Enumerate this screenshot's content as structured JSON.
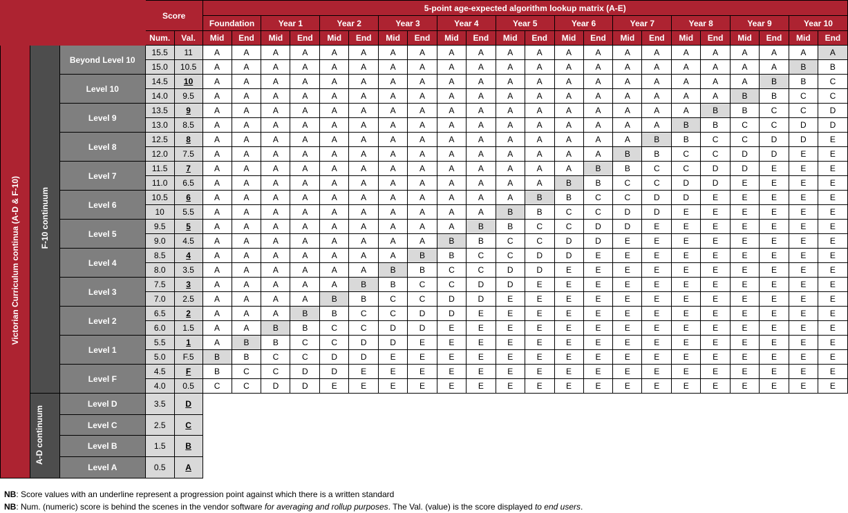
{
  "header": {
    "score_label": "Score",
    "num_label": "Num.",
    "val_label": "Val.",
    "matrix_title": "5-point age-expected algorithm lookup matrix (A-E)",
    "mid_label": "Mid",
    "end_label": "End"
  },
  "years": [
    "Foundation",
    "Year 1",
    "Year 2",
    "Year 3",
    "Year 4",
    "Year 5",
    "Year 6",
    "Year 7",
    "Year 8",
    "Year 9",
    "Year 10"
  ],
  "side": {
    "victorian": "Victorian Curriculum continua (A-D & F-10)",
    "f10": "F-10 continuum",
    "ad": "A-D continuum"
  },
  "levels": [
    {
      "name": "Beyond Level 10",
      "rows": [
        {
          "num": "15.5",
          "val": "11",
          "u": false,
          "grades": [
            "A",
            "A",
            "A",
            "A",
            "A",
            "A",
            "A",
            "A",
            "A",
            "A",
            "A",
            "A",
            "A",
            "A",
            "A",
            "A",
            "A",
            "A",
            "A",
            "A",
            "A",
            "A"
          ],
          "hl": [
            21
          ]
        },
        {
          "num": "15.0",
          "val": "10.5",
          "u": false,
          "grades": [
            "A",
            "A",
            "A",
            "A",
            "A",
            "A",
            "A",
            "A",
            "A",
            "A",
            "A",
            "A",
            "A",
            "A",
            "A",
            "A",
            "A",
            "A",
            "A",
            "A",
            "B",
            "B"
          ],
          "hl": [
            20
          ]
        }
      ]
    },
    {
      "name": "Level 10",
      "rows": [
        {
          "num": "14.5",
          "val": "10",
          "u": true,
          "grades": [
            "A",
            "A",
            "A",
            "A",
            "A",
            "A",
            "A",
            "A",
            "A",
            "A",
            "A",
            "A",
            "A",
            "A",
            "A",
            "A",
            "A",
            "A",
            "A",
            "B",
            "B",
            "C"
          ],
          "hl": [
            19
          ]
        },
        {
          "num": "14.0",
          "val": "9.5",
          "u": false,
          "grades": [
            "A",
            "A",
            "A",
            "A",
            "A",
            "A",
            "A",
            "A",
            "A",
            "A",
            "A",
            "A",
            "A",
            "A",
            "A",
            "A",
            "A",
            "A",
            "B",
            "B",
            "C",
            "C"
          ],
          "hl": [
            18
          ]
        }
      ]
    },
    {
      "name": "Level 9",
      "rows": [
        {
          "num": "13.5",
          "val": "9",
          "u": true,
          "grades": [
            "A",
            "A",
            "A",
            "A",
            "A",
            "A",
            "A",
            "A",
            "A",
            "A",
            "A",
            "A",
            "A",
            "A",
            "A",
            "A",
            "A",
            "B",
            "B",
            "C",
            "C",
            "D"
          ],
          "hl": [
            17
          ]
        },
        {
          "num": "13.0",
          "val": "8.5",
          "u": false,
          "grades": [
            "A",
            "A",
            "A",
            "A",
            "A",
            "A",
            "A",
            "A",
            "A",
            "A",
            "A",
            "A",
            "A",
            "A",
            "A",
            "A",
            "B",
            "B",
            "C",
            "C",
            "D",
            "D"
          ],
          "hl": [
            16
          ]
        }
      ]
    },
    {
      "name": "Level 8",
      "rows": [
        {
          "num": "12.5",
          "val": "8",
          "u": true,
          "grades": [
            "A",
            "A",
            "A",
            "A",
            "A",
            "A",
            "A",
            "A",
            "A",
            "A",
            "A",
            "A",
            "A",
            "A",
            "A",
            "B",
            "B",
            "C",
            "C",
            "D",
            "D",
            "E"
          ],
          "hl": [
            15
          ]
        },
        {
          "num": "12.0",
          "val": "7.5",
          "u": false,
          "grades": [
            "A",
            "A",
            "A",
            "A",
            "A",
            "A",
            "A",
            "A",
            "A",
            "A",
            "A",
            "A",
            "A",
            "A",
            "B",
            "B",
            "C",
            "C",
            "D",
            "D",
            "E",
            "E"
          ],
          "hl": [
            14
          ]
        }
      ]
    },
    {
      "name": "Level 7",
      "rows": [
        {
          "num": "11.5",
          "val": "7",
          "u": true,
          "grades": [
            "A",
            "A",
            "A",
            "A",
            "A",
            "A",
            "A",
            "A",
            "A",
            "A",
            "A",
            "A",
            "A",
            "B",
            "B",
            "C",
            "C",
            "D",
            "D",
            "E",
            "E",
            "E"
          ],
          "hl": [
            13
          ]
        },
        {
          "num": "11.0",
          "val": "6.5",
          "u": false,
          "grades": [
            "A",
            "A",
            "A",
            "A",
            "A",
            "A",
            "A",
            "A",
            "A",
            "A",
            "A",
            "A",
            "B",
            "B",
            "C",
            "C",
            "D",
            "D",
            "E",
            "E",
            "E",
            "E"
          ],
          "hl": [
            12
          ]
        }
      ]
    },
    {
      "name": "Level 6",
      "rows": [
        {
          "num": "10.5",
          "val": "6",
          "u": true,
          "grades": [
            "A",
            "A",
            "A",
            "A",
            "A",
            "A",
            "A",
            "A",
            "A",
            "A",
            "A",
            "B",
            "B",
            "C",
            "C",
            "D",
            "D",
            "E",
            "E",
            "E",
            "E",
            "E"
          ],
          "hl": [
            11
          ]
        },
        {
          "num": "10",
          "val": "5.5",
          "u": false,
          "grades": [
            "A",
            "A",
            "A",
            "A",
            "A",
            "A",
            "A",
            "A",
            "A",
            "A",
            "B",
            "B",
            "C",
            "C",
            "D",
            "D",
            "E",
            "E",
            "E",
            "E",
            "E",
            "E"
          ],
          "hl": [
            10
          ]
        }
      ]
    },
    {
      "name": "Level 5",
      "rows": [
        {
          "num": "9.5",
          "val": "5",
          "u": true,
          "grades": [
            "A",
            "A",
            "A",
            "A",
            "A",
            "A",
            "A",
            "A",
            "A",
            "B",
            "B",
            "C",
            "C",
            "D",
            "D",
            "E",
            "E",
            "E",
            "E",
            "E",
            "E",
            "E"
          ],
          "hl": [
            9
          ]
        },
        {
          "num": "9.0",
          "val": "4.5",
          "u": false,
          "grades": [
            "A",
            "A",
            "A",
            "A",
            "A",
            "A",
            "A",
            "A",
            "B",
            "B",
            "C",
            "C",
            "D",
            "D",
            "E",
            "E",
            "E",
            "E",
            "E",
            "E",
            "E",
            "E"
          ],
          "hl": [
            8
          ]
        }
      ]
    },
    {
      "name": "Level 4",
      "rows": [
        {
          "num": "8.5",
          "val": "4",
          "u": true,
          "grades": [
            "A",
            "A",
            "A",
            "A",
            "A",
            "A",
            "A",
            "B",
            "B",
            "C",
            "C",
            "D",
            "D",
            "E",
            "E",
            "E",
            "E",
            "E",
            "E",
            "E",
            "E",
            "E"
          ],
          "hl": [
            7
          ]
        },
        {
          "num": "8.0",
          "val": "3.5",
          "u": false,
          "grades": [
            "A",
            "A",
            "A",
            "A",
            "A",
            "A",
            "B",
            "B",
            "C",
            "C",
            "D",
            "D",
            "E",
            "E",
            "E",
            "E",
            "E",
            "E",
            "E",
            "E",
            "E",
            "E"
          ],
          "hl": [
            6
          ]
        }
      ]
    },
    {
      "name": "Level 3",
      "rows": [
        {
          "num": "7.5",
          "val": "3",
          "u": true,
          "grades": [
            "A",
            "A",
            "A",
            "A",
            "A",
            "B",
            "B",
            "C",
            "C",
            "D",
            "D",
            "E",
            "E",
            "E",
            "E",
            "E",
            "E",
            "E",
            "E",
            "E",
            "E",
            "E"
          ],
          "hl": [
            5
          ]
        },
        {
          "num": "7.0",
          "val": "2.5",
          "u": false,
          "grades": [
            "A",
            "A",
            "A",
            "A",
            "B",
            "B",
            "C",
            "C",
            "D",
            "D",
            "E",
            "E",
            "E",
            "E",
            "E",
            "E",
            "E",
            "E",
            "E",
            "E",
            "E",
            "E"
          ],
          "hl": [
            4
          ]
        }
      ]
    },
    {
      "name": "Level 2",
      "rows": [
        {
          "num": "6.5",
          "val": "2",
          "u": true,
          "grades": [
            "A",
            "A",
            "A",
            "B",
            "B",
            "C",
            "C",
            "D",
            "D",
            "E",
            "E",
            "E",
            "E",
            "E",
            "E",
            "E",
            "E",
            "E",
            "E",
            "E",
            "E",
            "E"
          ],
          "hl": [
            3
          ]
        },
        {
          "num": "6.0",
          "val": "1.5",
          "u": false,
          "grades": [
            "A",
            "A",
            "B",
            "B",
            "C",
            "C",
            "D",
            "D",
            "E",
            "E",
            "E",
            "E",
            "E",
            "E",
            "E",
            "E",
            "E",
            "E",
            "E",
            "E",
            "E",
            "E"
          ],
          "hl": [
            2
          ]
        }
      ]
    },
    {
      "name": "Level 1",
      "rows": [
        {
          "num": "5.5",
          "val": "1",
          "u": true,
          "grades": [
            "A",
            "B",
            "B",
            "C",
            "C",
            "D",
            "D",
            "E",
            "E",
            "E",
            "E",
            "E",
            "E",
            "E",
            "E",
            "E",
            "E",
            "E",
            "E",
            "E",
            "E",
            "E"
          ],
          "hl": [
            1
          ]
        },
        {
          "num": "5.0",
          "val": "F.5",
          "u": false,
          "grades": [
            "B",
            "B",
            "C",
            "C",
            "D",
            "D",
            "E",
            "E",
            "E",
            "E",
            "E",
            "E",
            "E",
            "E",
            "E",
            "E",
            "E",
            "E",
            "E",
            "E",
            "E",
            "E"
          ],
          "hl": [
            0
          ]
        }
      ]
    },
    {
      "name": "Level F",
      "rows": [
        {
          "num": "4.5",
          "val": "F",
          "u": true,
          "grades": [
            "B",
            "C",
            "C",
            "D",
            "D",
            "E",
            "E",
            "E",
            "E",
            "E",
            "E",
            "E",
            "E",
            "E",
            "E",
            "E",
            "E",
            "E",
            "E",
            "E",
            "E",
            "E"
          ],
          "hl": []
        },
        {
          "num": "4.0",
          "val": "0.5",
          "u": false,
          "grades": [
            "C",
            "C",
            "D",
            "D",
            "E",
            "E",
            "E",
            "E",
            "E",
            "E",
            "E",
            "E",
            "E",
            "E",
            "E",
            "E",
            "E",
            "E",
            "E",
            "E",
            "E",
            "E"
          ],
          "hl": []
        }
      ]
    }
  ],
  "ad_levels": [
    {
      "name": "Level D",
      "num": "3.5",
      "val": "D"
    },
    {
      "name": "Level C",
      "num": "2.5",
      "val": "C"
    },
    {
      "name": "Level B",
      "num": "1.5",
      "val": "B"
    },
    {
      "name": "Level A",
      "num": "0.5",
      "val": "A"
    }
  ],
  "notes": {
    "nb": "NB",
    "line1": ": Score values with an underline represent a progression point against which there is a written standard",
    "line2_a": ": Num. (numeric) score is behind the scenes in the vendor software ",
    "line2_b": "for averaging and rollup purposes",
    "line2_c": ". The Val. (value) is the score displayed ",
    "line2_d": "to end users",
    "line2_e": "."
  }
}
